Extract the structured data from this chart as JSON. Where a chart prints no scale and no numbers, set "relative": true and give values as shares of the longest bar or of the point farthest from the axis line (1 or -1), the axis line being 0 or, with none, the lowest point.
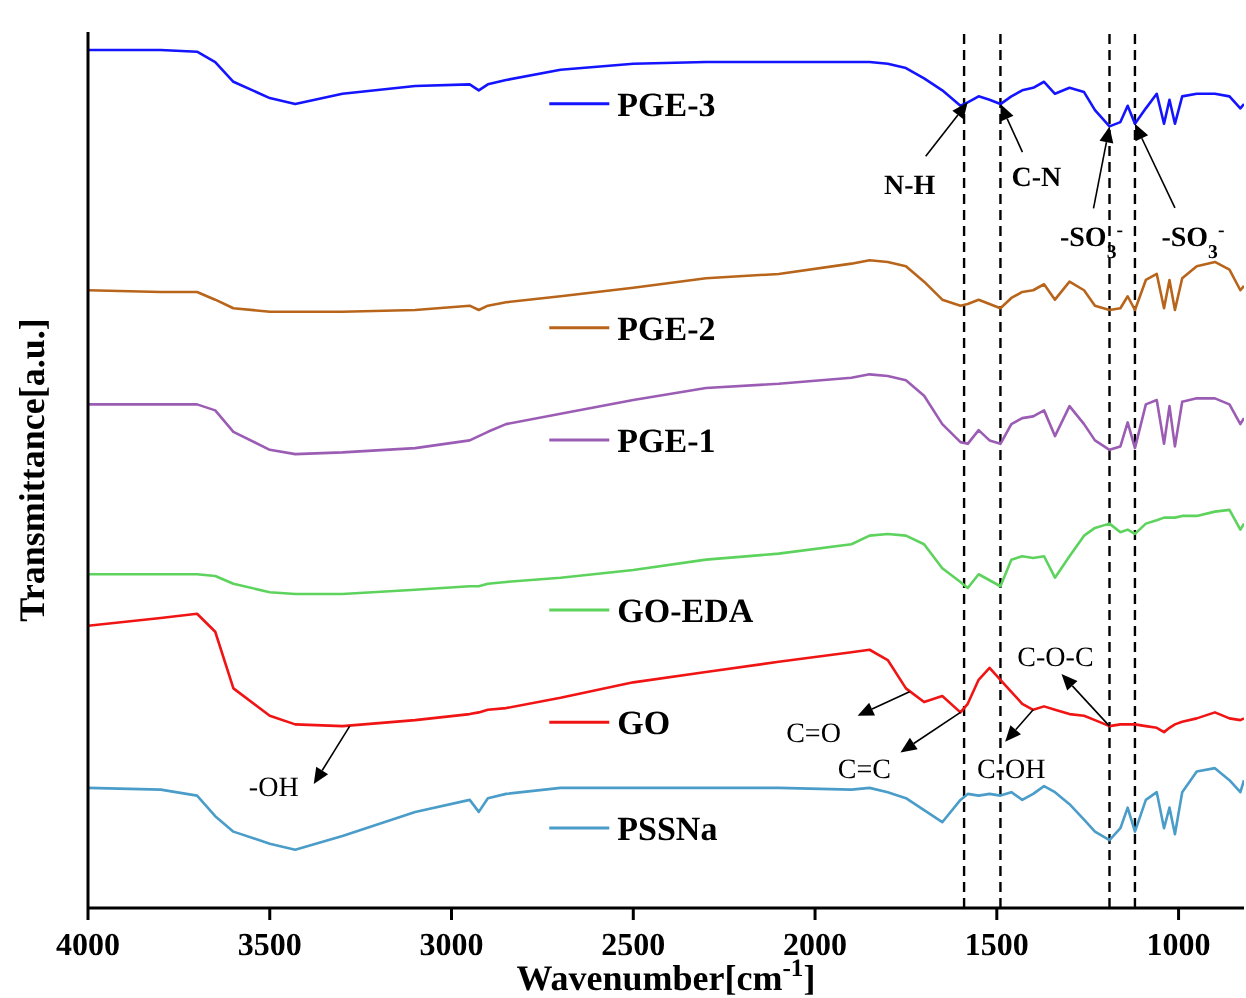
{
  "chart_data": {
    "type": "line",
    "xlabel": "Wavenumber[cm$^{-1}$]",
    "ylabel": "Transmittance[a.u.]",
    "relative": true,
    "legend": "center",
    "marker": "none",
    "line_style": "solid",
    "xlim": [
      4000,
      820
    ],
    "xticks": [
      4000,
      3500,
      3000,
      2500,
      2000,
      1500,
      1000
    ],
    "x": [
      4000,
      3800,
      3700,
      3650,
      3600,
      3500,
      3430,
      3300,
      3100,
      2950,
      2925,
      2900,
      2850,
      2700,
      2500,
      2300,
      2100,
      1900,
      1850,
      1800,
      1750,
      1700,
      1650,
      1600,
      1580,
      1550,
      1520,
      1490,
      1460,
      1430,
      1400,
      1370,
      1340,
      1300,
      1260,
      1230,
      1190,
      1160,
      1140,
      1120,
      1090,
      1060,
      1040,
      1025,
      1010,
      990,
      950,
      900,
      860,
      830,
      820
    ],
    "series": [
      {
        "name": "PGE-3",
        "color": "#1414ff",
        "values": [
          1,
          1,
          0.998,
          0.986,
          0.963,
          0.944,
          0.937,
          0.949,
          0.958,
          0.96,
          0.953,
          0.96,
          0.965,
          0.977,
          0.984,
          0.986,
          0.986,
          0.986,
          0.986,
          0.984,
          0.979,
          0.967,
          0.953,
          0.935,
          0.939,
          0.946,
          0.942,
          0.937,
          0.946,
          0.953,
          0.956,
          0.963,
          0.949,
          0.956,
          0.951,
          0.93,
          0.911,
          0.916,
          0.935,
          0.914,
          0.932,
          0.949,
          0.914,
          0.942,
          0.914,
          0.946,
          0.949,
          0.949,
          0.946,
          0.932,
          0.937
        ]
      },
      {
        "name": "PGE-2",
        "color": "#b8651b",
        "values": [
          0.72,
          0.718,
          0.718,
          0.709,
          0.699,
          0.695,
          0.695,
          0.695,
          0.697,
          0.702,
          0.697,
          0.702,
          0.706,
          0.713,
          0.723,
          0.734,
          0.739,
          0.751,
          0.755,
          0.753,
          0.748,
          0.73,
          0.709,
          0.702,
          0.704,
          0.709,
          0.704,
          0.699,
          0.711,
          0.718,
          0.72,
          0.727,
          0.709,
          0.73,
          0.72,
          0.702,
          0.697,
          0.699,
          0.713,
          0.697,
          0.732,
          0.739,
          0.699,
          0.732,
          0.697,
          0.734,
          0.748,
          0.753,
          0.744,
          0.72,
          0.725
        ]
      },
      {
        "name": "PGE-1",
        "color": "#9b5cb4",
        "values": [
          0.587,
          0.587,
          0.587,
          0.58,
          0.555,
          0.534,
          0.529,
          0.531,
          0.536,
          0.545,
          0.55,
          0.555,
          0.564,
          0.576,
          0.592,
          0.606,
          0.611,
          0.618,
          0.622,
          0.62,
          0.615,
          0.597,
          0.564,
          0.543,
          0.541,
          0.557,
          0.545,
          0.541,
          0.564,
          0.571,
          0.573,
          0.58,
          0.55,
          0.585,
          0.564,
          0.545,
          0.534,
          0.538,
          0.566,
          0.536,
          0.587,
          0.592,
          0.541,
          0.585,
          0.538,
          0.59,
          0.594,
          0.594,
          0.587,
          0.564,
          0.571
        ]
      },
      {
        "name": "GO-EDA",
        "color": "#5dd35d",
        "values": [
          0.389,
          0.389,
          0.389,
          0.387,
          0.378,
          0.368,
          0.366,
          0.366,
          0.371,
          0.375,
          0.375,
          0.378,
          0.38,
          0.385,
          0.394,
          0.406,
          0.413,
          0.424,
          0.434,
          0.436,
          0.434,
          0.424,
          0.396,
          0.38,
          0.373,
          0.389,
          0.382,
          0.375,
          0.406,
          0.41,
          0.408,
          0.41,
          0.385,
          0.41,
          0.434,
          0.443,
          0.448,
          0.438,
          0.441,
          0.436,
          0.448,
          0.452,
          0.455,
          0.455,
          0.455,
          0.457,
          0.457,
          0.462,
          0.464,
          0.441,
          0.448
        ]
      },
      {
        "name": "GO",
        "color": "#f01414",
        "values": [
          0.329,
          0.338,
          0.343,
          0.322,
          0.256,
          0.224,
          0.214,
          0.212,
          0.219,
          0.226,
          0.228,
          0.231,
          0.233,
          0.245,
          0.263,
          0.275,
          0.287,
          0.298,
          0.301,
          0.289,
          0.256,
          0.24,
          0.247,
          0.228,
          0.238,
          0.266,
          0.28,
          0.266,
          0.252,
          0.238,
          0.231,
          0.235,
          0.231,
          0.226,
          0.224,
          0.219,
          0.212,
          0.214,
          0.214,
          0.214,
          0.212,
          0.21,
          0.205,
          0.21,
          0.214,
          0.217,
          0.221,
          0.228,
          0.221,
          0.219,
          0.221
        ]
      },
      {
        "name": "PSSNa",
        "color": "#4a9cc9",
        "values": [
          0.14,
          0.138,
          0.131,
          0.107,
          0.089,
          0.075,
          0.068,
          0.084,
          0.112,
          0.126,
          0.112,
          0.128,
          0.133,
          0.14,
          0.14,
          0.14,
          0.14,
          0.138,
          0.14,
          0.135,
          0.128,
          0.114,
          0.1,
          0.126,
          0.133,
          0.131,
          0.133,
          0.131,
          0.135,
          0.126,
          0.133,
          0.142,
          0.135,
          0.121,
          0.103,
          0.089,
          0.079,
          0.093,
          0.117,
          0.089,
          0.126,
          0.135,
          0.093,
          0.117,
          0.086,
          0.135,
          0.159,
          0.163,
          0.149,
          0.135,
          0.149
        ]
      }
    ],
    "ref_lines": [
      {
        "axis": "x",
        "value": 1590,
        "color": "#000000",
        "line_style": "dashed"
      },
      {
        "axis": "x",
        "value": 1490,
        "color": "#000000",
        "line_style": "dashed"
      },
      {
        "axis": "x",
        "value": 1190,
        "color": "#000000",
        "line_style": "dashed"
      },
      {
        "axis": "x",
        "value": 1120,
        "color": "#000000",
        "line_style": "dashed"
      }
    ],
    "annotations": [
      {
        "text": "N-H",
        "x": 1580,
        "y": 0.939
      },
      {
        "text": "C-N",
        "x": 1490,
        "y": 0.937
      },
      {
        "text": "-SO$_{3}$$^{-}$",
        "x": 1190,
        "y": 0.911
      },
      {
        "text": "-SO$_{3}$$^{-}$",
        "x": 1120,
        "y": 0.914
      },
      {
        "text": "C=O",
        "x": 1740,
        "y": 0.252
      },
      {
        "text": "C=C",
        "x": 1600,
        "y": 0.228
      },
      {
        "text": "C-OH",
        "x": 1400,
        "y": 0.231
      },
      {
        "text": "C-O-C",
        "x": 1190,
        "y": 0.212
      },
      {
        "text": "-OH",
        "x": 3280,
        "y": 0.212
      }
    ]
  }
}
